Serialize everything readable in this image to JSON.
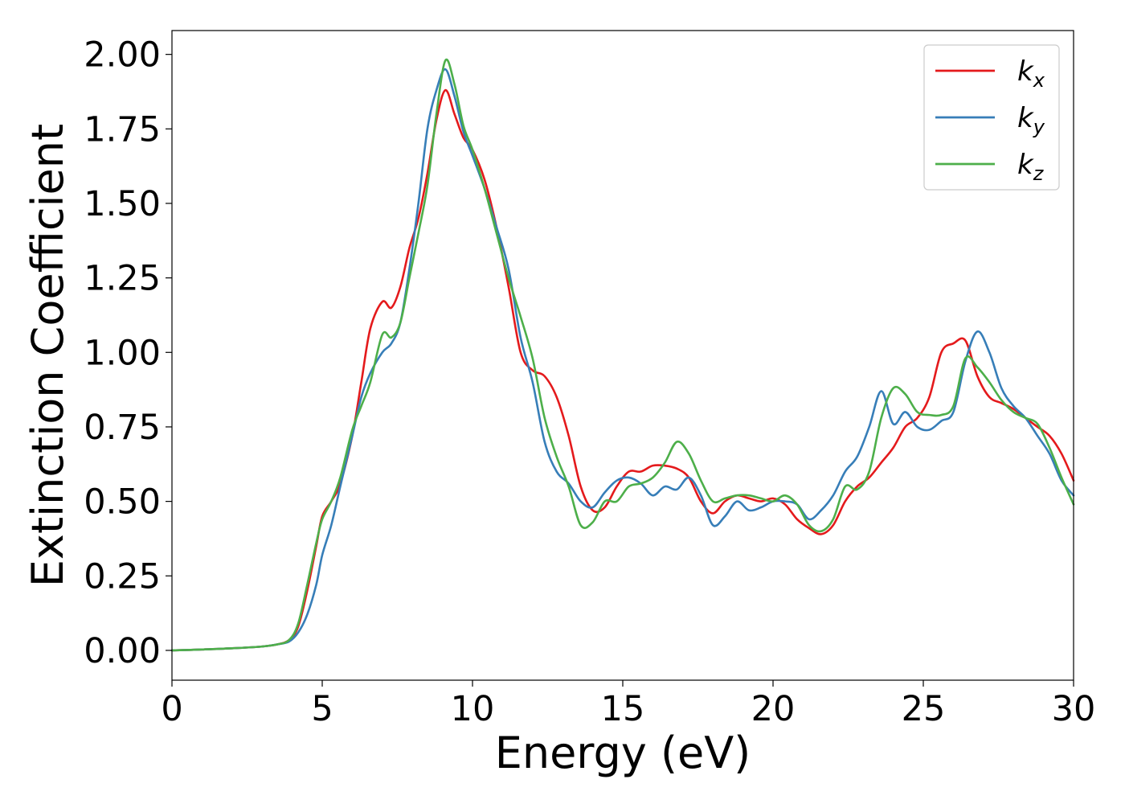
{
  "chart_data": {
    "type": "line",
    "title": "",
    "xlabel": "Energy (eV)",
    "ylabel": "Extinction Coefficient",
    "xlim": [
      0,
      30
    ],
    "ylim": [
      -0.1,
      2.08
    ],
    "xticks": [
      "0",
      "5",
      "10",
      "15",
      "20",
      "25",
      "30"
    ],
    "yticks": [
      "0.00",
      "0.25",
      "0.50",
      "0.75",
      "1.00",
      "1.25",
      "1.50",
      "1.75",
      "2.00"
    ],
    "grid": false,
    "legend_position": "top-right",
    "series": [
      {
        "name": "k",
        "subscript": "x",
        "color": "#e41a1c",
        "x": [
          0,
          1,
          2,
          3,
          3.5,
          3.9,
          4.2,
          4.5,
          4.8,
          5.0,
          5.3,
          5.6,
          6.0,
          6.3,
          6.6,
          7.0,
          7.3,
          7.6,
          7.9,
          8.2,
          8.5,
          8.8,
          9.1,
          9.4,
          9.7,
          10.0,
          10.4,
          10.8,
          11.2,
          11.6,
          12.0,
          12.4,
          12.8,
          13.2,
          13.6,
          14.0,
          14.4,
          14.8,
          15.2,
          15.6,
          16.0,
          16.4,
          16.8,
          17.2,
          17.6,
          18.0,
          18.4,
          18.8,
          19.2,
          19.6,
          20.0,
          20.4,
          20.8,
          21.2,
          21.6,
          22.0,
          22.4,
          22.8,
          23.2,
          23.6,
          24.0,
          24.4,
          24.8,
          25.2,
          25.6,
          26.0,
          26.4,
          26.8,
          27.2,
          27.6,
          28.0,
          28.4,
          28.8,
          29.2,
          29.6,
          30.0
        ],
        "y": [
          0.0,
          0.003,
          0.007,
          0.013,
          0.02,
          0.035,
          0.08,
          0.2,
          0.35,
          0.45,
          0.5,
          0.56,
          0.72,
          0.9,
          1.08,
          1.17,
          1.15,
          1.22,
          1.35,
          1.45,
          1.6,
          1.78,
          1.88,
          1.8,
          1.72,
          1.68,
          1.58,
          1.42,
          1.22,
          1.0,
          0.94,
          0.92,
          0.85,
          0.72,
          0.55,
          0.47,
          0.48,
          0.55,
          0.6,
          0.6,
          0.62,
          0.62,
          0.61,
          0.58,
          0.5,
          0.46,
          0.5,
          0.52,
          0.51,
          0.5,
          0.51,
          0.49,
          0.44,
          0.41,
          0.39,
          0.42,
          0.5,
          0.55,
          0.58,
          0.63,
          0.68,
          0.75,
          0.78,
          0.85,
          1.0,
          1.03,
          1.04,
          0.92,
          0.85,
          0.83,
          0.81,
          0.78,
          0.75,
          0.72,
          0.66,
          0.57
        ]
      },
      {
        "name": "k",
        "subscript": "y",
        "color": "#377eb8",
        "x": [
          0,
          1,
          2,
          3,
          3.5,
          3.9,
          4.2,
          4.5,
          4.8,
          5.0,
          5.3,
          5.6,
          6.0,
          6.3,
          6.6,
          7.0,
          7.3,
          7.6,
          7.9,
          8.2,
          8.5,
          8.8,
          9.1,
          9.4,
          9.7,
          10.0,
          10.4,
          10.8,
          11.2,
          11.6,
          12.0,
          12.4,
          12.8,
          13.2,
          13.6,
          14.0,
          14.4,
          14.8,
          15.2,
          15.6,
          16.0,
          16.4,
          16.8,
          17.2,
          17.6,
          18.0,
          18.4,
          18.8,
          19.2,
          19.6,
          20.0,
          20.4,
          20.8,
          21.2,
          21.6,
          22.0,
          22.4,
          22.8,
          23.2,
          23.6,
          24.0,
          24.4,
          24.8,
          25.2,
          25.6,
          26.0,
          26.4,
          26.8,
          27.2,
          27.6,
          28.0,
          28.4,
          28.8,
          29.2,
          29.6,
          30.0
        ],
        "y": [
          0.0,
          0.003,
          0.007,
          0.013,
          0.02,
          0.03,
          0.06,
          0.12,
          0.22,
          0.32,
          0.42,
          0.55,
          0.72,
          0.85,
          0.93,
          1.0,
          1.03,
          1.1,
          1.28,
          1.5,
          1.75,
          1.88,
          1.95,
          1.86,
          1.74,
          1.66,
          1.55,
          1.42,
          1.28,
          1.05,
          0.9,
          0.7,
          0.6,
          0.56,
          0.5,
          0.48,
          0.53,
          0.57,
          0.58,
          0.56,
          0.52,
          0.55,
          0.54,
          0.58,
          0.52,
          0.42,
          0.45,
          0.5,
          0.47,
          0.48,
          0.5,
          0.5,
          0.49,
          0.44,
          0.47,
          0.52,
          0.6,
          0.65,
          0.75,
          0.87,
          0.76,
          0.8,
          0.75,
          0.74,
          0.77,
          0.8,
          0.97,
          1.07,
          1.0,
          0.88,
          0.82,
          0.78,
          0.72,
          0.66,
          0.57,
          0.52
        ]
      },
      {
        "name": "k",
        "subscript": "z",
        "color": "#4daf4a",
        "x": [
          0,
          1,
          2,
          3,
          3.5,
          3.9,
          4.2,
          4.5,
          4.8,
          5.0,
          5.3,
          5.6,
          6.0,
          6.3,
          6.6,
          7.0,
          7.3,
          7.6,
          7.9,
          8.2,
          8.5,
          8.8,
          9.1,
          9.4,
          9.7,
          10.0,
          10.4,
          10.8,
          11.2,
          11.6,
          12.0,
          12.4,
          12.8,
          13.2,
          13.6,
          14.0,
          14.4,
          14.8,
          15.2,
          15.6,
          16.0,
          16.4,
          16.8,
          17.2,
          17.6,
          18.0,
          18.4,
          18.8,
          19.2,
          19.6,
          20.0,
          20.4,
          20.8,
          21.2,
          21.6,
          22.0,
          22.4,
          22.8,
          23.2,
          23.6,
          24.0,
          24.4,
          24.8,
          25.2,
          25.6,
          26.0,
          26.4,
          26.8,
          27.2,
          27.6,
          28.0,
          28.4,
          28.8,
          29.2,
          29.6,
          30.0
        ],
        "y": [
          0.0,
          0.003,
          0.007,
          0.013,
          0.02,
          0.035,
          0.09,
          0.22,
          0.36,
          0.44,
          0.5,
          0.58,
          0.74,
          0.82,
          0.9,
          1.06,
          1.05,
          1.1,
          1.25,
          1.4,
          1.56,
          1.8,
          1.98,
          1.9,
          1.76,
          1.68,
          1.55,
          1.4,
          1.25,
          1.12,
          0.98,
          0.78,
          0.65,
          0.55,
          0.42,
          0.43,
          0.5,
          0.5,
          0.55,
          0.56,
          0.58,
          0.63,
          0.7,
          0.66,
          0.57,
          0.5,
          0.51,
          0.52,
          0.52,
          0.51,
          0.5,
          0.52,
          0.49,
          0.42,
          0.4,
          0.44,
          0.55,
          0.54,
          0.6,
          0.78,
          0.88,
          0.86,
          0.8,
          0.79,
          0.79,
          0.82,
          0.98,
          0.95,
          0.9,
          0.84,
          0.8,
          0.78,
          0.76,
          0.68,
          0.58,
          0.49
        ]
      }
    ]
  }
}
